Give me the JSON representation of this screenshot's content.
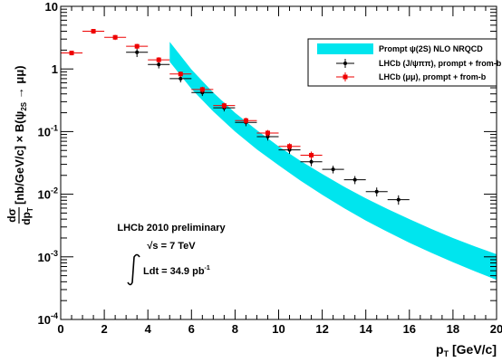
{
  "chart_data": {
    "type": "scatter",
    "x_axis": {
      "label_main": "p",
      "label_sub": "T",
      "label_unit": " [GeV/c]",
      "range": [
        0,
        20
      ],
      "ticks": [
        0,
        2,
        4,
        6,
        8,
        10,
        12,
        14,
        16,
        18,
        20
      ]
    },
    "y_axis": {
      "scale": "log",
      "range": [
        0.0001,
        10
      ],
      "ticks": [
        {
          "value": 0.0001,
          "exp": "-4"
        },
        {
          "value": 0.001,
          "exp": "-3"
        },
        {
          "value": 0.01,
          "exp": "-2"
        },
        {
          "value": 0.1,
          "exp": "-1"
        },
        {
          "value": 1,
          "exp": ""
        },
        {
          "value": 10,
          "exp": ""
        }
      ],
      "label_frac_num": "dσ",
      "label_frac_den": "dp",
      "label_frac_den_sub": "T",
      "label_rest": " [nb/GeV/c] × B(ψ",
      "label_rest_sub": "2S",
      "label_tail": " → μμ)"
    },
    "series": [
      {
        "name": "Prompt ψ(2S) NLO NRQCD",
        "kind": "band",
        "color": "#00e5ee",
        "x": [
          5,
          6,
          7,
          8,
          9,
          10,
          11,
          12,
          13,
          14,
          15,
          16,
          17,
          18,
          19,
          20
        ],
        "low": [
          1.3,
          0.48,
          0.21,
          0.1,
          0.052,
          0.029,
          0.0165,
          0.0098,
          0.006,
          0.0038,
          0.0025,
          0.00168,
          0.00116,
          0.00082,
          0.00059,
          0.00043
        ],
        "high": [
          2.7,
          0.98,
          0.42,
          0.2,
          0.105,
          0.058,
          0.034,
          0.021,
          0.0132,
          0.0086,
          0.0058,
          0.004,
          0.0028,
          0.002,
          0.00147,
          0.0011
        ]
      },
      {
        "name": "LHCb (J/ψππ), prompt + from-b",
        "kind": "points",
        "color": "#000000",
        "x": [
          3.5,
          4.5,
          5.5,
          6.5,
          7.5,
          8.5,
          9.5,
          10.5,
          11.5,
          12.5,
          13.5,
          14.5,
          15.5
        ],
        "xerr": 0.5,
        "y": [
          1.85,
          1.18,
          0.7,
          0.42,
          0.24,
          0.14,
          0.083,
          0.051,
          0.033,
          0.025,
          0.017,
          0.011,
          0.0082
        ],
        "yerr": [
          0.3,
          0.16,
          0.09,
          0.05,
          0.03,
          0.018,
          0.011,
          0.007,
          0.005,
          0.0035,
          0.0025,
          0.0018,
          0.0014
        ]
      },
      {
        "name": "LHCb (μμ), prompt + from-b",
        "kind": "points",
        "color": "#ee0000",
        "x": [
          0.5,
          1.5,
          2.5,
          3.5,
          4.5,
          5.5,
          6.5,
          7.5,
          8.5,
          9.5,
          10.5,
          11.5
        ],
        "xerr": 0.5,
        "y": [
          1.8,
          4.0,
          3.2,
          2.3,
          1.4,
          0.83,
          0.47,
          0.26,
          0.15,
          0.095,
          0.058,
          0.042
        ],
        "yerr": [
          0.15,
          0.35,
          0.3,
          0.22,
          0.14,
          0.08,
          0.05,
          0.028,
          0.017,
          0.011,
          0.007,
          0.006
        ]
      }
    ],
    "legend": {
      "placement": "top-right",
      "entries": [
        {
          "text": "Prompt ψ(2S) NLO NRQCD",
          "marker": "band",
          "color": "#00e5ee"
        },
        {
          "text": "LHCb (J/ψππ), prompt + from-b",
          "marker": "dot",
          "color": "#000000"
        },
        {
          "text": "LHCb (μμ), prompt + from-b",
          "marker": "square",
          "color": "#ee0000"
        }
      ]
    },
    "annotations": {
      "line1": "LHCb 2010 preliminary",
      "line2_root": "√s",
      "line2_rest": " = 7 TeV",
      "line3_main": "Ldt = 34.9 pb",
      "line3_exp": "-1"
    }
  }
}
